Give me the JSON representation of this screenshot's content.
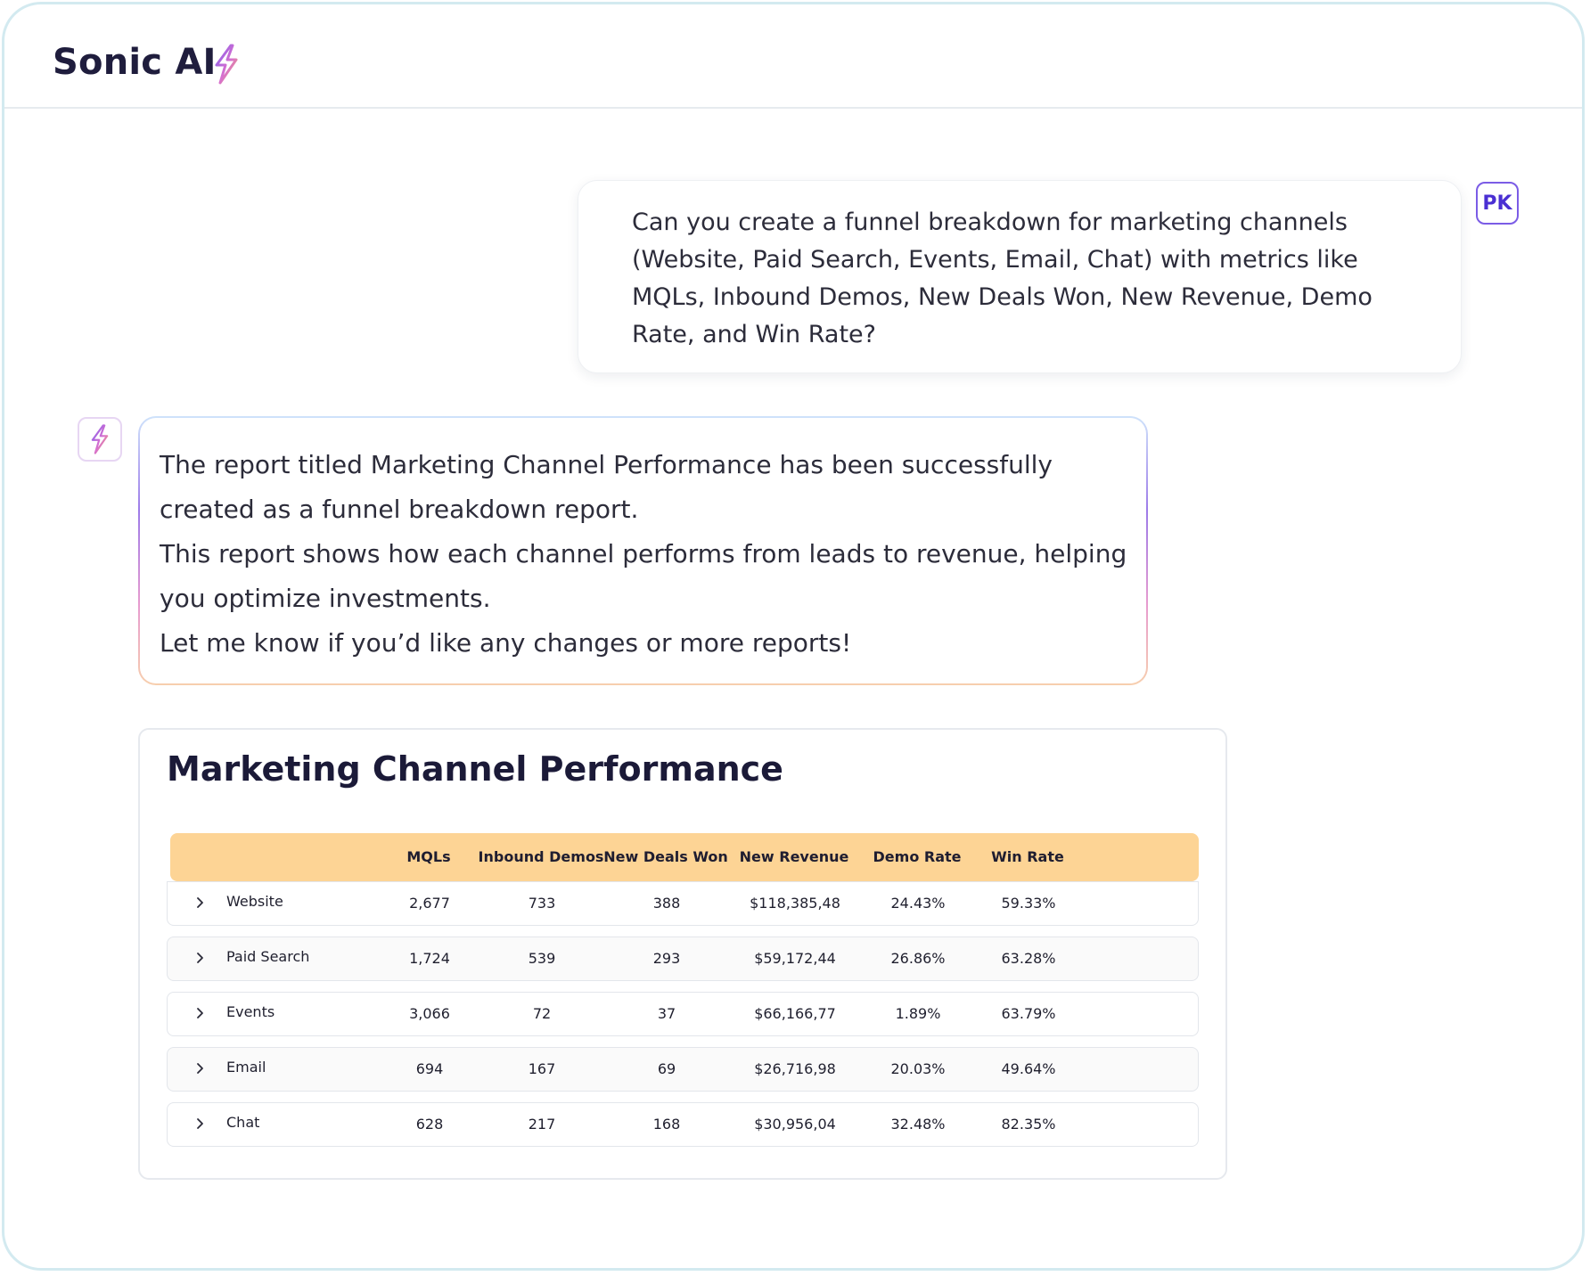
{
  "header": {
    "title": "Sonic AI",
    "icon": "lightning-bolt-icon"
  },
  "user_message": {
    "avatar_initials": "PK",
    "text": "Can you create a funnel breakdown for marketing channels (Website, Paid Search, Events, Email, Chat) with metrics like MQLs, Inbound Demos, New Deals Won, New Revenue, Demo Rate, and Win Rate?"
  },
  "assistant_message": {
    "icon": "lightning-bolt-icon",
    "lines": [
      "The report titled Marketing Channel Performance has been successfully",
      "created as a funnel breakdown report.",
      "This report shows how each channel performs from leads to revenue, helping",
      "you optimize investments.",
      "Let me know if you’d like any changes or more reports!"
    ]
  },
  "report": {
    "title": "Marketing Channel Performance",
    "columns": [
      "MQLs",
      "Inbound Demos",
      "New Deals Won",
      "New Revenue",
      "Demo Rate",
      "Win Rate"
    ],
    "rows": [
      {
        "label": "Website",
        "values": [
          "2,677",
          "733",
          "388",
          "$118,385,48",
          "24.43%",
          "59.33%"
        ]
      },
      {
        "label": "Paid Search",
        "values": [
          "1,724",
          "539",
          "293",
          "$59,172,44",
          "26.86%",
          "63.28%"
        ]
      },
      {
        "label": "Events",
        "values": [
          "3,066",
          "72",
          "37",
          "$66,166,77",
          "1.89%",
          "63.79%"
        ]
      },
      {
        "label": "Email",
        "values": [
          "694",
          "167",
          "69",
          "$26,716,98",
          "20.03%",
          "49.64%"
        ]
      },
      {
        "label": "Chat",
        "values": [
          "628",
          "217",
          "168",
          "$30,956,04",
          "32.48%",
          "82.35%"
        ]
      }
    ]
  },
  "colors": {
    "accent_purple": "#7b5ce6",
    "table_header": "#fdd495",
    "title_text": "#1f1d3d"
  }
}
